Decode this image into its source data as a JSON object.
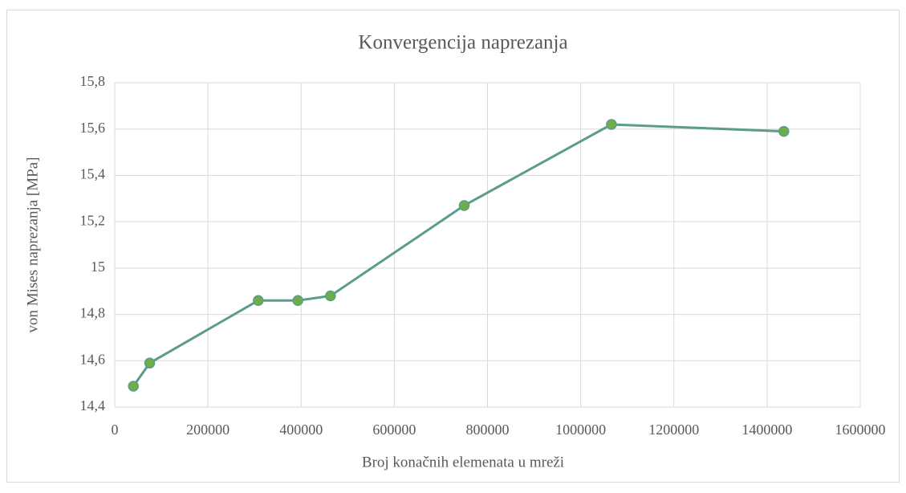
{
  "chart_data": {
    "type": "line",
    "title": "Konvergencija naprezanja",
    "xlabel": "Broj konačnih elemenata u mreži",
    "ylabel": "von Mises naprezanja [MPa]",
    "series": [
      {
        "color": "#5b9c8c",
        "marker_color": "#70ad47",
        "x": [
          40000,
          75000,
          308000,
          393000,
          463000,
          750000,
          1066000,
          1436000
        ],
        "values": [
          14.49,
          14.59,
          14.86,
          14.86,
          14.88,
          15.27,
          15.62,
          15.59
        ]
      }
    ],
    "xlim": [
      0,
      1600000
    ],
    "xticks": [
      0,
      200000,
      400000,
      600000,
      800000,
      1000000,
      1200000,
      1400000,
      1600000
    ],
    "ylim": [
      14.4,
      15.8
    ],
    "yticks": [
      {
        "value": 14.4,
        "label": "14,4"
      },
      {
        "value": 14.6,
        "label": "14,6"
      },
      {
        "value": 14.8,
        "label": "14,8"
      },
      15,
      {
        "value": 15.2,
        "label": "15,2"
      },
      {
        "value": 15.4,
        "label": "15,4"
      },
      {
        "value": 15.6,
        "label": "15,6"
      },
      {
        "value": 15.8,
        "label": "15,8"
      }
    ],
    "grid": true
  }
}
